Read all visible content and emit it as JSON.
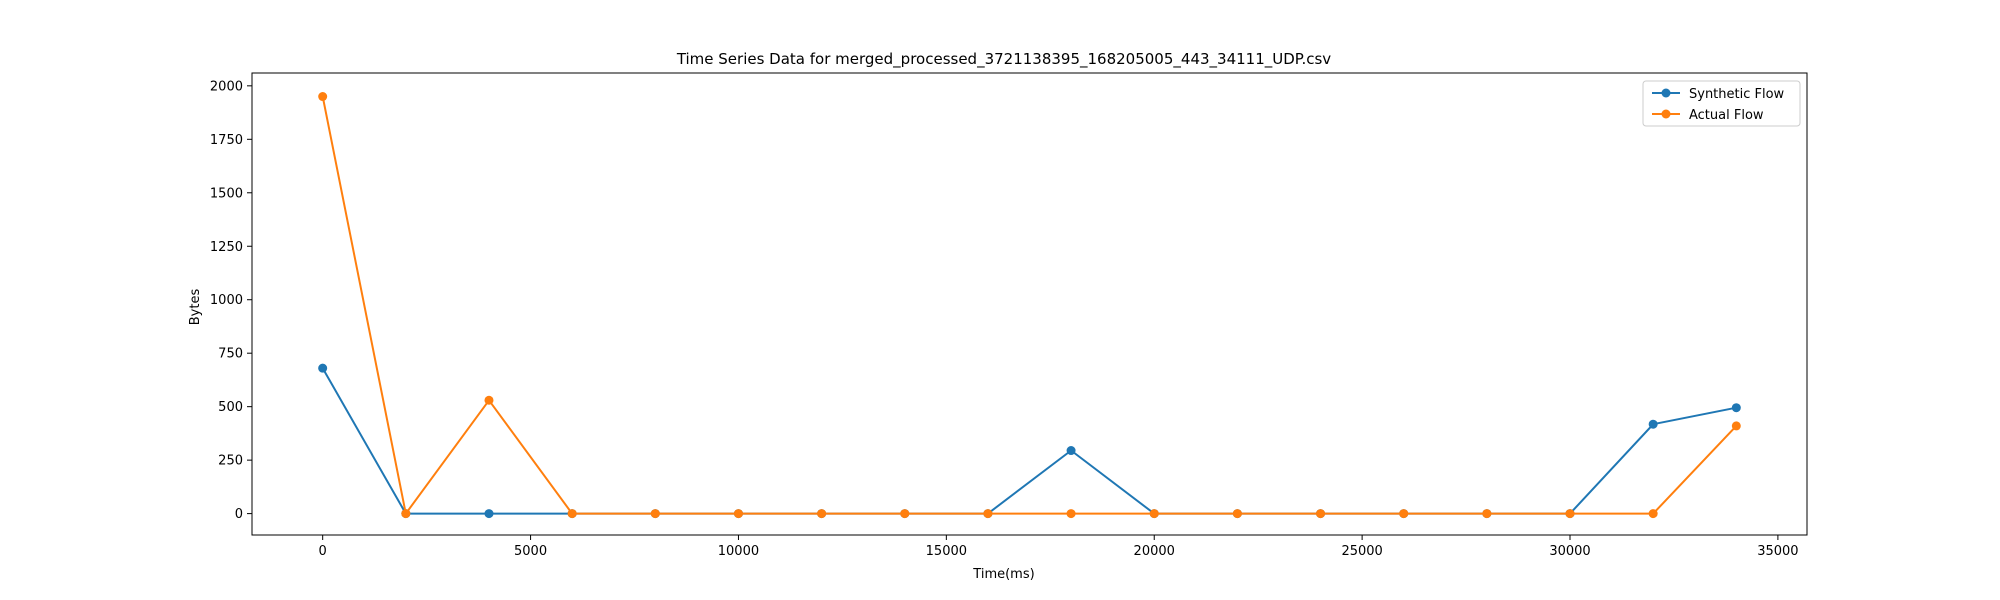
{
  "chart_data": {
    "type": "line",
    "title": "Time Series Data for merged_processed_3721138395_168205005_443_34111_UDP.csv",
    "xlabel": "Time(ms)",
    "ylabel": "Bytes",
    "xlim": [
      -1700,
      35700
    ],
    "ylim": [
      -100,
      2060
    ],
    "xticks": [
      0,
      5000,
      10000,
      15000,
      20000,
      25000,
      30000,
      35000
    ],
    "yticks": [
      0,
      250,
      500,
      750,
      1000,
      1250,
      1500,
      1750,
      2000
    ],
    "grid": false,
    "legend": "top-right",
    "x": [
      0,
      2000,
      4000,
      6000,
      8000,
      10000,
      12000,
      14000,
      16000,
      18000,
      20000,
      22000,
      24000,
      26000,
      28000,
      30000,
      32000,
      34000
    ],
    "series": [
      {
        "name": "Synthetic Flow",
        "color": "#1f77b4",
        "values": [
          680,
          0,
          0,
          0,
          0,
          0,
          0,
          0,
          0,
          295,
          0,
          0,
          0,
          0,
          0,
          0,
          418,
          495
        ]
      },
      {
        "name": "Actual Flow",
        "color": "#ff7f0e",
        "values": [
          1950,
          0,
          530,
          0,
          0,
          0,
          0,
          0,
          0,
          0,
          0,
          0,
          0,
          0,
          0,
          0,
          0,
          410
        ]
      }
    ]
  }
}
